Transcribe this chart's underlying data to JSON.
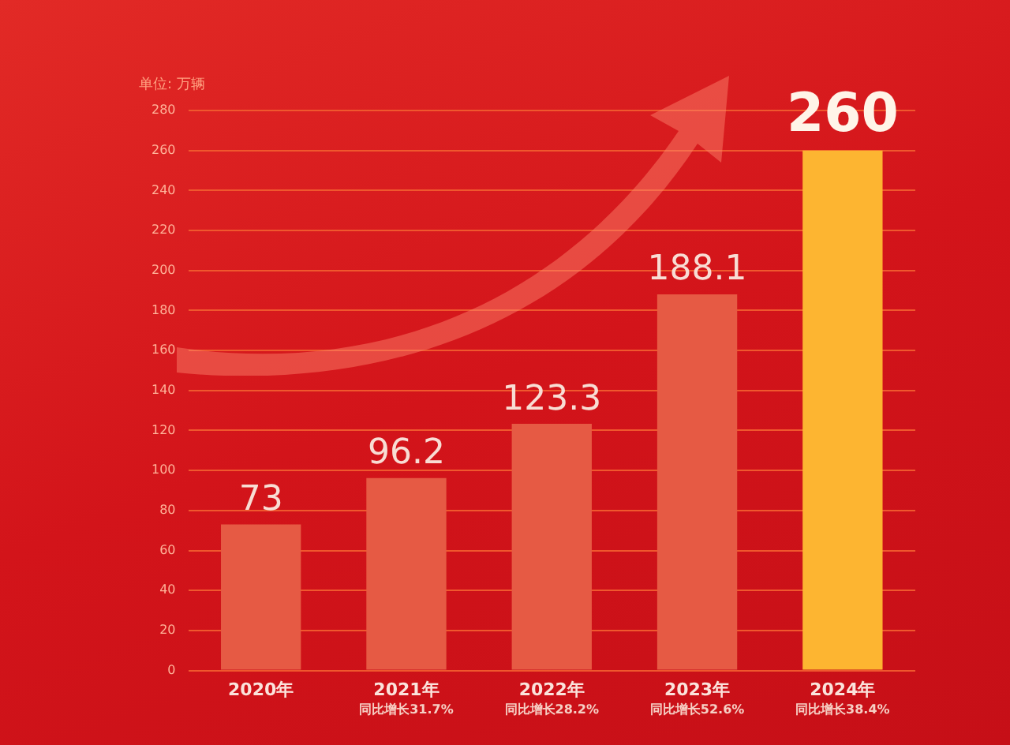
{
  "chart_data": {
    "type": "bar",
    "ylabel": "单位: 万辆",
    "categories": [
      "2020年",
      "2021年",
      "2022年",
      "2023年",
      "2024年"
    ],
    "values": [
      73,
      96.2,
      123.3,
      188.1,
      260
    ],
    "colors": [
      "#e65a44",
      "#e65a44",
      "#e65a44",
      "#e65a44",
      "#fdb531"
    ],
    "ylim": [
      0,
      280
    ],
    "yticks": [
      0,
      20,
      40,
      60,
      80,
      100,
      120,
      140,
      160,
      180,
      200,
      220,
      240,
      260,
      280
    ],
    "grid": "y",
    "data_labels": true,
    "annotations": [
      "同比增长31.7%",
      "同比增长28.2%",
      "同比增长52.6%",
      "同比增长38.4%"
    ]
  }
}
